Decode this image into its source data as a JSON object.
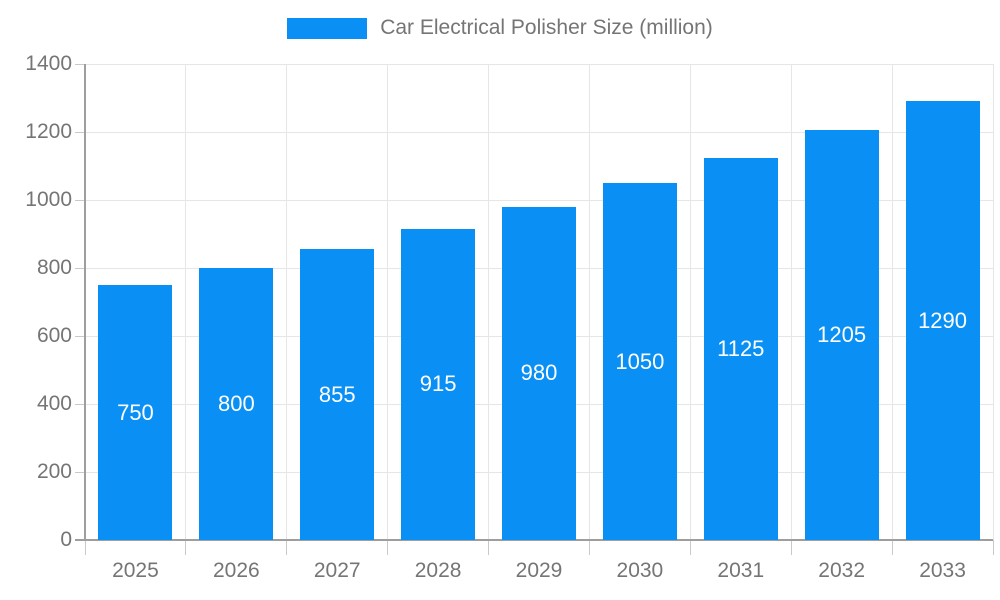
{
  "page": {
    "background_color": "#ffffff"
  },
  "legend": {
    "label": "Car Electrical Polisher Size (million)",
    "swatch_color": "#0A90F5",
    "position": "top-center"
  },
  "chart_data": {
    "type": "bar",
    "title": "Car Electrical Polisher Size (million)",
    "categories": [
      "2025",
      "2026",
      "2027",
      "2028",
      "2029",
      "2030",
      "2031",
      "2032",
      "2033"
    ],
    "values": [
      750,
      800,
      855,
      915,
      980,
      1050,
      1125,
      1205,
      1290
    ],
    "value_labels": [
      "750",
      "800",
      "855",
      "915",
      "980",
      "1050",
      "1125",
      "1205",
      "1290"
    ],
    "xlabel": "",
    "ylabel": "",
    "ylim": [
      0,
      1400
    ],
    "yticks": [
      0,
      200,
      400,
      600,
      800,
      1000,
      1200,
      1400
    ],
    "ytick_labels": [
      "0",
      "200",
      "400",
      "600",
      "800",
      "1000",
      "1200",
      "1400"
    ],
    "grid": true,
    "legend_position": "top",
    "bar_color": "#0A90F5",
    "value_label_color": "#ffffff",
    "axis_text_color": "#757575",
    "gridline_color": "#e6e6e6",
    "axis_line_color": "#9e9e9e",
    "tick_color": "#c9c9c9"
  }
}
